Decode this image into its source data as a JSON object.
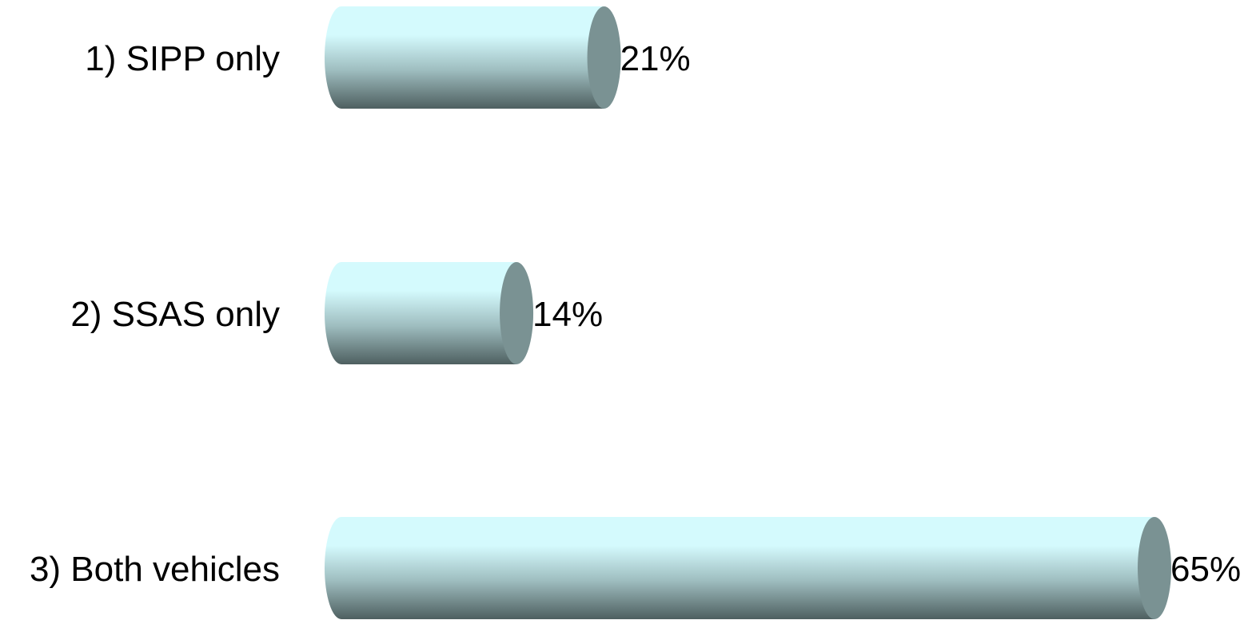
{
  "chart_data": {
    "type": "bar",
    "orientation": "horizontal",
    "style": "3d-cylinder",
    "categories": [
      "1) SIPP only",
      "2) SSAS only",
      "3) Both vehicles"
    ],
    "values": [
      21,
      14,
      65
    ],
    "value_labels": [
      "21%",
      "14%",
      "65%"
    ],
    "unit": "%",
    "xlim": [
      0,
      65
    ],
    "grid": false,
    "legend": "none",
    "colors": {
      "bar_highlight": "#d4fafd",
      "bar_mid": "#9fbec0",
      "bar_shadow": "#4e5f60",
      "bar_end_cap": "#7a9293"
    }
  }
}
